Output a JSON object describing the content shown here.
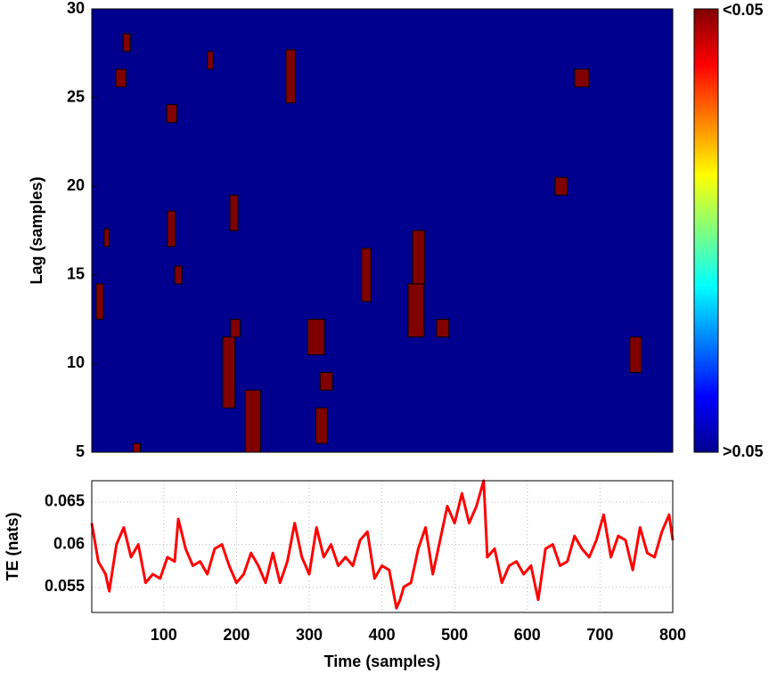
{
  "chart_data": [
    {
      "type": "heatmap",
      "ylabel": "Lag (samples)",
      "xlim": [
        1,
        800
      ],
      "ylim": [
        5,
        30
      ],
      "yticks": [
        5,
        10,
        15,
        20,
        25,
        30
      ],
      "colormap": "jet",
      "low_color": "#00008f",
      "high_color": "#800000",
      "colorbar_labels": [
        "<0.05",
        ">0.05"
      ],
      "regions": [
        {
          "x": [
            34,
            48
          ],
          "y": [
            25.6,
            26.6
          ]
        },
        {
          "x": [
            44,
            54
          ],
          "y": [
            27.6,
            28.6
          ]
        },
        {
          "x": [
            104,
            118
          ],
          "y": [
            23.6,
            24.6
          ]
        },
        {
          "x": [
            160,
            168
          ],
          "y": [
            26.6,
            27.6
          ]
        },
        {
          "x": [
            268,
            281
          ],
          "y": [
            24.7,
            27.7
          ]
        },
        {
          "x": [
            105,
            116
          ],
          "y": [
            16.6,
            18.6
          ]
        },
        {
          "x": [
            115,
            125
          ],
          "y": [
            14.5,
            15.5
          ]
        },
        {
          "x": [
            18,
            25
          ],
          "y": [
            16.6,
            17.6
          ]
        },
        {
          "x": [
            7,
            17
          ],
          "y": [
            12.5,
            14.5
          ]
        },
        {
          "x": [
            192,
            205
          ],
          "y": [
            11.5,
            12.5
          ]
        },
        {
          "x": [
            181,
            198
          ],
          "y": [
            7.5,
            11.5
          ]
        },
        {
          "x": [
            212,
            233
          ],
          "y": [
            5,
            8.5
          ]
        },
        {
          "x": [
            298,
            321
          ],
          "y": [
            10.5,
            12.5
          ]
        },
        {
          "x": [
            315,
            332
          ],
          "y": [
            8.5,
            9.5
          ]
        },
        {
          "x": [
            372,
            385
          ],
          "y": [
            13.5,
            16.5
          ]
        },
        {
          "x": [
            436,
            458
          ],
          "y": [
            11.5,
            14.5
          ]
        },
        {
          "x": [
            442,
            459
          ],
          "y": [
            14.5,
            17.5
          ]
        },
        {
          "x": [
            475,
            492
          ],
          "y": [
            11.5,
            12.5
          ]
        },
        {
          "x": [
            638,
            655
          ],
          "y": [
            19.5,
            20.5
          ]
        },
        {
          "x": [
            665,
            685
          ],
          "y": [
            25.6,
            26.6
          ]
        },
        {
          "x": [
            741,
            757
          ],
          "y": [
            9.5,
            11.5
          ]
        },
        {
          "x": [
            191,
            202
          ],
          "y": [
            17.5,
            19.5
          ]
        },
        {
          "x": [
            309,
            325
          ],
          "y": [
            5.5,
            7.5
          ]
        },
        {
          "x": [
            58,
            68
          ],
          "y": [
            5,
            5.5
          ]
        }
      ]
    },
    {
      "type": "line",
      "xlabel": "Time (samples)",
      "ylabel": "TE (nats)",
      "xlim": [
        1,
        800
      ],
      "ylim": [
        0.052,
        0.0675
      ],
      "xticks": [
        100,
        200,
        300,
        400,
        500,
        600,
        700,
        800
      ],
      "yticks": [
        0.055,
        0.06,
        0.065
      ],
      "grid": true,
      "color": "#ff0000",
      "x": [
        1,
        10,
        20,
        25,
        35,
        45,
        55,
        65,
        75,
        85,
        95,
        105,
        115,
        120,
        130,
        140,
        150,
        160,
        170,
        180,
        190,
        200,
        210,
        220,
        230,
        240,
        250,
        260,
        270,
        280,
        290,
        300,
        310,
        320,
        330,
        340,
        350,
        360,
        370,
        380,
        390,
        400,
        410,
        420,
        425,
        430,
        440,
        450,
        460,
        470,
        480,
        490,
        500,
        510,
        520,
        530,
        540,
        545,
        555,
        565,
        575,
        585,
        595,
        605,
        615,
        625,
        635,
        645,
        655,
        665,
        675,
        685,
        695,
        705,
        715,
        725,
        735,
        745,
        755,
        765,
        775,
        785,
        795,
        800
      ],
      "values": [
        0.0625,
        0.058,
        0.0565,
        0.0545,
        0.06,
        0.062,
        0.0585,
        0.06,
        0.0555,
        0.0565,
        0.056,
        0.0585,
        0.058,
        0.063,
        0.0595,
        0.0575,
        0.058,
        0.0565,
        0.0595,
        0.06,
        0.0575,
        0.0555,
        0.0565,
        0.059,
        0.0575,
        0.0555,
        0.059,
        0.0555,
        0.058,
        0.0625,
        0.0585,
        0.0565,
        0.062,
        0.0585,
        0.06,
        0.0575,
        0.0585,
        0.0575,
        0.0605,
        0.0615,
        0.056,
        0.0575,
        0.057,
        0.0525,
        0.0535,
        0.055,
        0.0555,
        0.0595,
        0.062,
        0.0565,
        0.0605,
        0.0645,
        0.0625,
        0.066,
        0.0625,
        0.0645,
        0.0675,
        0.0585,
        0.0595,
        0.0555,
        0.0575,
        0.058,
        0.0565,
        0.0575,
        0.0535,
        0.0595,
        0.06,
        0.0575,
        0.058,
        0.061,
        0.0595,
        0.0585,
        0.0605,
        0.0635,
        0.0585,
        0.061,
        0.0605,
        0.057,
        0.062,
        0.059,
        0.0585,
        0.0615,
        0.0635,
        0.0605
      ]
    }
  ]
}
